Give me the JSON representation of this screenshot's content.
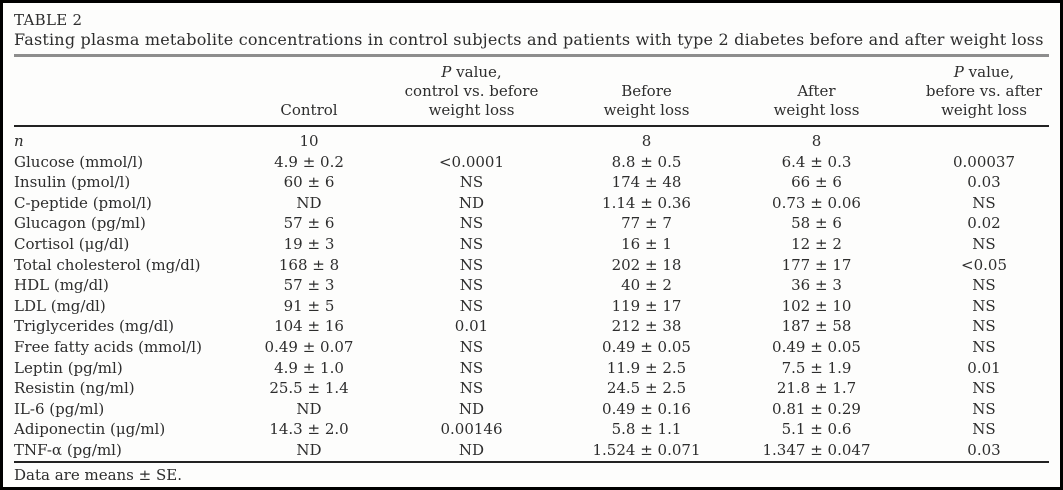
{
  "table": {
    "title": "TABLE 2",
    "caption": "Fasting plasma metabolite concentrations in control subjects and patients with type 2 diabetes before and after weight loss",
    "footnote": "Data are means ± SE.",
    "headers": [
      {
        "lines": [
          ""
        ],
        "align": "left"
      },
      {
        "lines": [
          "Control"
        ]
      },
      {
        "lines": [
          "P value,",
          "control vs. before",
          "weight loss"
        ],
        "italic_p": true
      },
      {
        "lines": [
          "Before",
          "weight loss"
        ]
      },
      {
        "lines": [
          "After",
          "weight loss"
        ]
      },
      {
        "lines": [
          "P value,",
          "before vs. after",
          "weight loss"
        ],
        "italic_p": true
      }
    ],
    "rows": [
      {
        "label": "n",
        "italic_label": true,
        "values": [
          "10",
          "",
          "8",
          "8",
          ""
        ]
      },
      {
        "label": "Glucose (mmol/l)",
        "values": [
          "4.9 ± 0.2",
          "<0.0001",
          "8.8 ± 0.5",
          "6.4 ± 0.3",
          "0.00037"
        ]
      },
      {
        "label": "Insulin (pmol/l)",
        "values": [
          "60 ± 6",
          "NS",
          "174 ± 48",
          "66 ± 6",
          "0.03"
        ]
      },
      {
        "label": "C-peptide (pmol/l)",
        "values": [
          "ND",
          "ND",
          "1.14 ± 0.36",
          "0.73 ± 0.06",
          "NS"
        ]
      },
      {
        "label": "Glucagon (pg/ml)",
        "values": [
          "57 ± 6",
          "NS",
          "77 ± 7",
          "58 ± 6",
          "0.02"
        ]
      },
      {
        "label": "Cortisol (μg/dl)",
        "values": [
          "19 ± 3",
          "NS",
          "16 ± 1",
          "12 ± 2",
          "NS"
        ]
      },
      {
        "label": "Total cholesterol (mg/dl)",
        "values": [
          "168 ± 8",
          "NS",
          "202 ± 18",
          "177 ± 17",
          "<0.05"
        ]
      },
      {
        "label": "HDL (mg/dl)",
        "values": [
          "57 ± 3",
          "NS",
          "40 ± 2",
          "36 ± 3",
          "NS"
        ]
      },
      {
        "label": "LDL (mg/dl)",
        "values": [
          "91 ± 5",
          "NS",
          "119 ± 17",
          "102 ± 10",
          "NS"
        ]
      },
      {
        "label": "Triglycerides (mg/dl)",
        "values": [
          "104 ± 16",
          "0.01",
          "212 ± 38",
          "187 ± 58",
          "NS"
        ]
      },
      {
        "label": "Free fatty acids (mmol/l)",
        "values": [
          "0.49 ± 0.07",
          "NS",
          "0.49 ± 0.05",
          "0.49 ± 0.05",
          "NS"
        ]
      },
      {
        "label": "Leptin (pg/ml)",
        "values": [
          "4.9 ± 1.0",
          "NS",
          "11.9 ± 2.5",
          "7.5 ± 1.9",
          "0.01"
        ]
      },
      {
        "label": "Resistin (ng/ml)",
        "values": [
          "25.5 ± 1.4",
          "NS",
          "24.5 ± 2.5",
          "21.8 ± 1.7",
          "NS"
        ]
      },
      {
        "label": "IL-6 (pg/ml)",
        "values": [
          "ND",
          "ND",
          "0.49 ± 0.16",
          "0.81 ± 0.29",
          "NS"
        ]
      },
      {
        "label": "Adiponectin (μg/ml)",
        "values": [
          "14.3 ± 2.0",
          "0.00146",
          "5.8 ± 1.1",
          "5.1 ± 0.6",
          "NS"
        ]
      },
      {
        "label": "TNF-α (pg/ml)",
        "values": [
          "ND",
          "ND",
          "1.524 ± 0.071",
          "1.347 ± 0.047",
          "0.03"
        ]
      }
    ],
    "colors": {
      "text": "#2d2d2d",
      "caption_rule": "#8d8d8d",
      "header_rule": "#222222",
      "frame": "#000000",
      "background": "#fdfdfc"
    }
  }
}
